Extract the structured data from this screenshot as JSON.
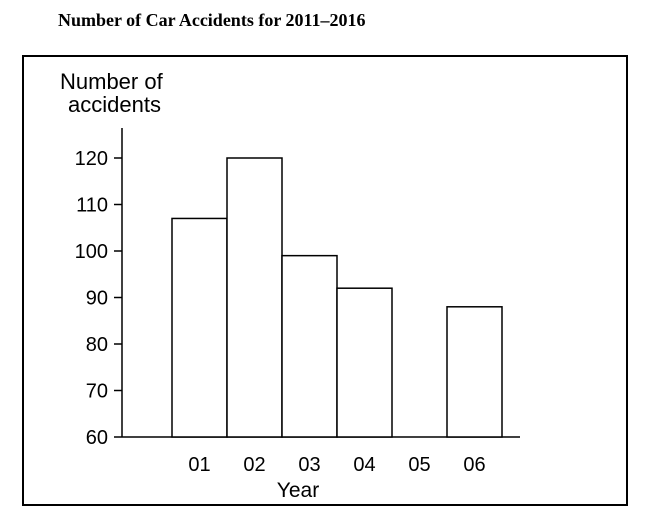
{
  "chart_data": {
    "type": "bar",
    "title": "Number of Car Accidents for 2011–2016",
    "ylabel": [
      "Number of",
      "accidents"
    ],
    "xlabel": "Year",
    "categories": [
      "01",
      "02",
      "03",
      "04",
      "05",
      "06"
    ],
    "values": [
      107,
      120,
      99,
      92,
      null,
      88
    ],
    "ylim": [
      60,
      120
    ],
    "yticks": [
      60,
      70,
      80,
      90,
      100,
      110,
      120
    ],
    "grid": false,
    "legend": "none",
    "bar_fill": "#ffffff",
    "bar_stroke": "#000000"
  }
}
